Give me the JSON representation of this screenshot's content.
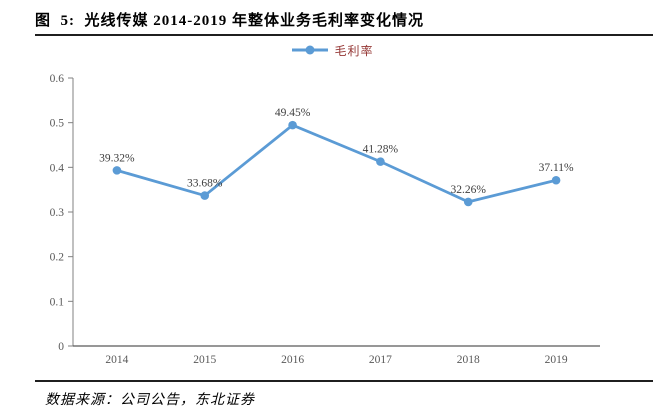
{
  "figure_title": "图  5:  光线传媒 2014-2019 年整体业务毛利率变化情况",
  "legend": {
    "label": "毛利率"
  },
  "chart_data": {
    "type": "line",
    "categories": [
      "2014",
      "2015",
      "2016",
      "2017",
      "2018",
      "2019"
    ],
    "series": [
      {
        "name": "毛利率",
        "values": [
          0.3932,
          0.3368,
          0.4945,
          0.4128,
          0.3226,
          0.3711
        ],
        "color": "#5B9BD5",
        "point_labels": [
          "39.32%",
          "33.68%",
          "49.45%",
          "41.28%",
          "32.26%",
          "37.11%"
        ]
      }
    ],
    "title": "",
    "xlabel": "",
    "ylabel": "",
    "ylim": [
      0,
      0.6
    ],
    "y_ticks": [
      0,
      0.1,
      0.2,
      0.3,
      0.4,
      0.5,
      0.6
    ],
    "y_tick_labels": [
      "0",
      "0.1",
      "0.2",
      "0.3",
      "0.4",
      "0.5",
      "0.6"
    ],
    "grid": false,
    "legend_position": "top-center",
    "marker": "circle"
  },
  "footer": {
    "source_text": "数据来源：公司公告，东北证券"
  },
  "colors": {
    "series_blue": "#5B9BD5",
    "legend_text_red": "#953735",
    "data_label_gray": "#404040",
    "axis_text_gray": "#595959",
    "axis_line_gray": "#808080",
    "rule_black": "#1F1F1F"
  }
}
